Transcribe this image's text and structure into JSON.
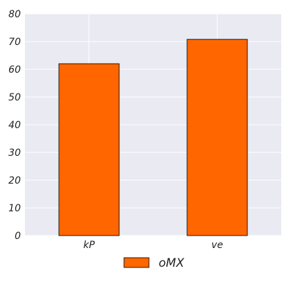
{
  "chart_data": {
    "type": "bar",
    "categories": [
      "kP",
      "ve"
    ],
    "series": [
      {
        "name": "oMX",
        "values": [
          62,
          70.8
        ],
        "color": "#ff6600"
      }
    ],
    "ylim": [
      0,
      80
    ],
    "yticks": [
      0,
      10,
      20,
      30,
      40,
      50,
      60,
      70,
      80
    ],
    "grid": true,
    "legend": "bottom-center",
    "background": "#eaeaf2",
    "grid_color": "#ffffff",
    "bar_edge_color": "#1a1a1a"
  }
}
